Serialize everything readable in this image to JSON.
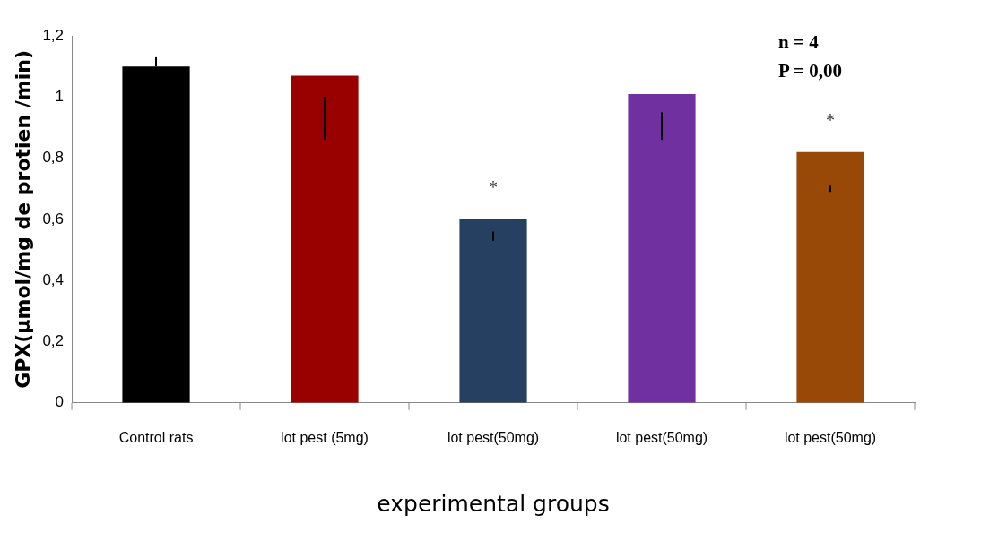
{
  "chart_data": {
    "type": "bar",
    "xlabel": "experimental groups",
    "ylabel": "GPX(µmol/mg de protien /min)",
    "categories": [
      "Control rats",
      "lot pest (5mg)",
      "lot pest(50mg)",
      "lot pest(50mg)",
      "lot pest(50mg)"
    ],
    "values": [
      1.1,
      1.07,
      0.6,
      1.01,
      0.82
    ],
    "colors": [
      "#000000",
      "#990000",
      "#254061",
      "#7030a0",
      "#984807"
    ],
    "errors": [
      [
        1.1,
        1.13
      ],
      [
        0.86,
        1.0
      ],
      [
        0.53,
        0.56
      ],
      [
        0.86,
        0.95
      ],
      [
        0.69,
        0.71
      ]
    ],
    "ylim": [
      0,
      1.2
    ],
    "yticks": [
      0,
      {
        "value": 0.2,
        "label": "0,2"
      },
      {
        "value": 0.4,
        "label": "0,4"
      },
      {
        "value": 0.6,
        "label": "0,6"
      },
      {
        "value": 0.8,
        "label": "0,8"
      },
      1,
      {
        "value": 1.2,
        "label": "1,2"
      }
    ],
    "grid": false,
    "annotations": [
      "n = 4",
      "P = 0,00",
      {
        "text": "*",
        "x": "lot pest(50mg)",
        "y": 0.6
      },
      {
        "text": "*",
        "y": 0.82
      }
    ]
  }
}
